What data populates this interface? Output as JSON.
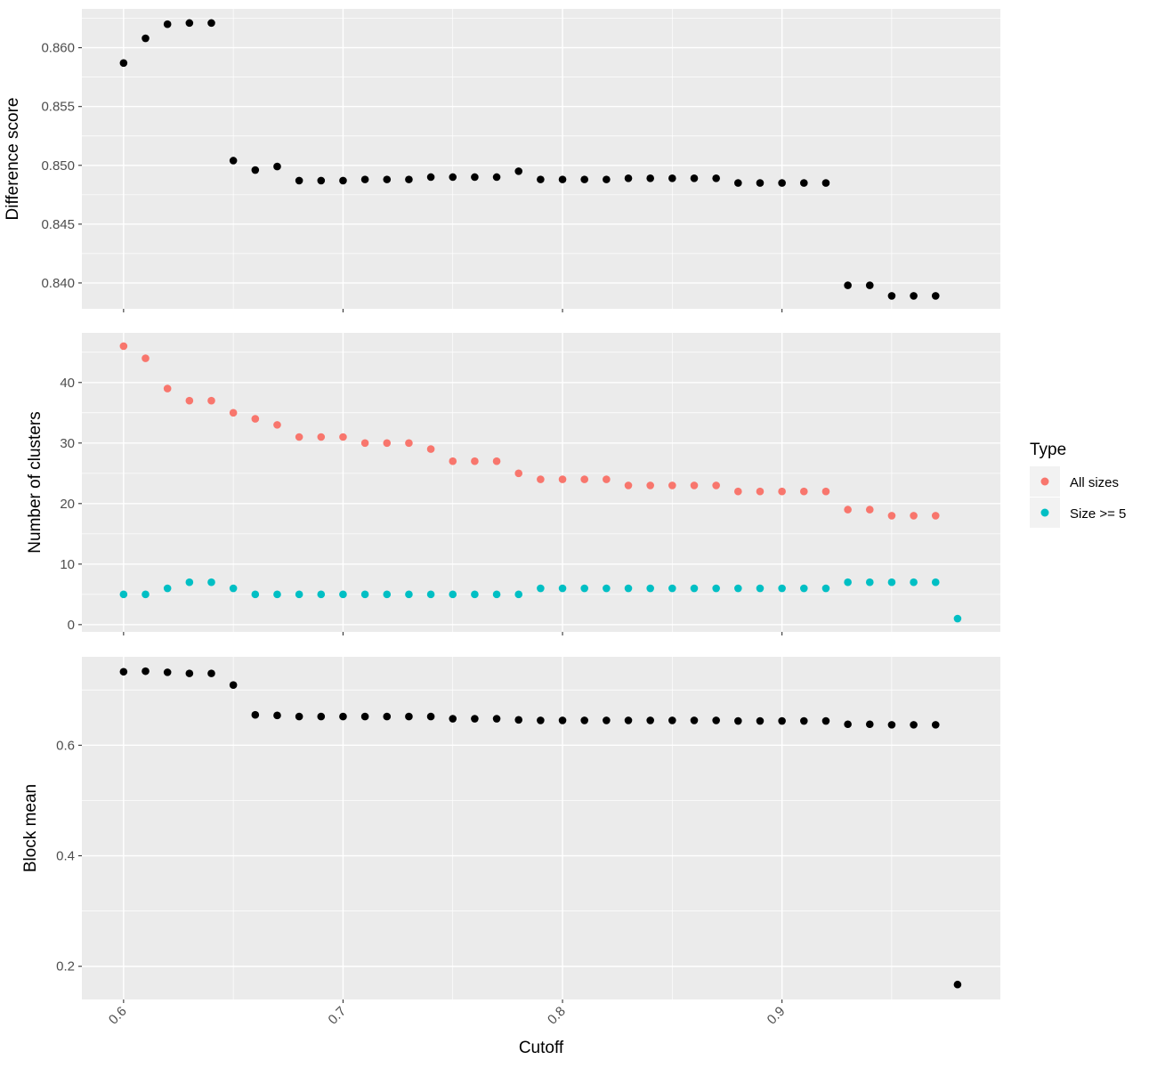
{
  "chart_data": {
    "type": "scatter",
    "xlabel": "Cutoff",
    "x_ticks": [
      0.6,
      0.7,
      0.8,
      0.9
    ],
    "x_tick_labels": [
      "0.6",
      "0.7",
      "0.8",
      "0.9"
    ],
    "xlim": [
      0.581,
      0.9995
    ],
    "legend": {
      "title": "Type",
      "placement": "right",
      "entries": [
        {
          "label": "All sizes",
          "color": "#F8766D"
        },
        {
          "label": "Size >= 5",
          "color": "#00BFC4"
        }
      ]
    },
    "panels": [
      {
        "id": "difference",
        "ylabel": "Difference score",
        "ylim": [
          0.8378,
          0.8633
        ],
        "y_ticks": [
          0.84,
          0.845,
          0.85,
          0.855,
          0.86
        ],
        "y_tick_labels": [
          "0.840",
          "0.845",
          "0.850",
          "0.855",
          "0.860"
        ],
        "series": [
          {
            "color": "#000000",
            "x": [
              0.6,
              0.61,
              0.62,
              0.63,
              0.64,
              0.65,
              0.66,
              0.67,
              0.68,
              0.69,
              0.7,
              0.71,
              0.72,
              0.73,
              0.74,
              0.75,
              0.76,
              0.77,
              0.78,
              0.79,
              0.8,
              0.81,
              0.82,
              0.83,
              0.84,
              0.85,
              0.86,
              0.87,
              0.88,
              0.89,
              0.9,
              0.91,
              0.92,
              0.93,
              0.94,
              0.95,
              0.96,
              0.97
            ],
            "y": [
              0.8587,
              0.8608,
              0.862,
              0.8621,
              0.8621,
              0.8504,
              0.8496,
              0.8499,
              0.8487,
              0.8487,
              0.8487,
              0.8488,
              0.8488,
              0.8488,
              0.849,
              0.849,
              0.849,
              0.849,
              0.8495,
              0.8488,
              0.8488,
              0.8488,
              0.8488,
              0.8489,
              0.8489,
              0.8489,
              0.8489,
              0.8489,
              0.8485,
              0.8485,
              0.8485,
              0.8485,
              0.8485,
              0.8398,
              0.8398,
              0.8389,
              0.8389,
              0.8389
            ]
          }
        ]
      },
      {
        "id": "clusters",
        "ylabel": "Number of clusters",
        "ylim": [
          -1.2,
          48.2
        ],
        "y_ticks": [
          0,
          10,
          20,
          30,
          40
        ],
        "y_tick_labels": [
          "0",
          "10",
          "20",
          "30",
          "40"
        ],
        "series": [
          {
            "name": "All sizes",
            "color": "#F8766D",
            "x": [
              0.6,
              0.61,
              0.62,
              0.63,
              0.64,
              0.65,
              0.66,
              0.67,
              0.68,
              0.69,
              0.7,
              0.71,
              0.72,
              0.73,
              0.74,
              0.75,
              0.76,
              0.77,
              0.78,
              0.79,
              0.8,
              0.81,
              0.82,
              0.83,
              0.84,
              0.85,
              0.86,
              0.87,
              0.88,
              0.89,
              0.9,
              0.91,
              0.92,
              0.93,
              0.94,
              0.95,
              0.96,
              0.97
            ],
            "y": [
              46,
              44,
              39,
              37,
              37,
              35,
              34,
              33,
              31,
              31,
              31,
              30,
              30,
              30,
              29,
              27,
              27,
              27,
              25,
              24,
              24,
              24,
              24,
              23,
              23,
              23,
              23,
              23,
              22,
              22,
              22,
              22,
              22,
              19,
              19,
              18,
              18,
              18
            ]
          },
          {
            "name": "Size >= 5",
            "color": "#00BFC4",
            "x": [
              0.6,
              0.61,
              0.62,
              0.63,
              0.64,
              0.65,
              0.66,
              0.67,
              0.68,
              0.69,
              0.7,
              0.71,
              0.72,
              0.73,
              0.74,
              0.75,
              0.76,
              0.77,
              0.78,
              0.79,
              0.8,
              0.81,
              0.82,
              0.83,
              0.84,
              0.85,
              0.86,
              0.87,
              0.88,
              0.89,
              0.9,
              0.91,
              0.92,
              0.93,
              0.94,
              0.95,
              0.96,
              0.97,
              0.98
            ],
            "y": [
              5,
              5,
              6,
              7,
              7,
              6,
              5,
              5,
              5,
              5,
              5,
              5,
              5,
              5,
              5,
              5,
              5,
              5,
              5,
              6,
              6,
              6,
              6,
              6,
              6,
              6,
              6,
              6,
              6,
              6,
              6,
              6,
              6,
              7,
              7,
              7,
              7,
              7,
              1
            ]
          }
        ]
      },
      {
        "id": "blockmean",
        "ylabel": "Block mean",
        "ylim": [
          0.14,
          0.76
        ],
        "y_ticks": [
          0.2,
          0.4,
          0.6
        ],
        "y_tick_labels": [
          "0.2",
          "0.4",
          "0.6"
        ],
        "series": [
          {
            "color": "#000000",
            "x": [
              0.6,
              0.61,
              0.62,
              0.63,
              0.64,
              0.65,
              0.66,
              0.67,
              0.68,
              0.69,
              0.7,
              0.71,
              0.72,
              0.73,
              0.74,
              0.75,
              0.76,
              0.77,
              0.78,
              0.79,
              0.8,
              0.81,
              0.82,
              0.83,
              0.84,
              0.85,
              0.86,
              0.87,
              0.88,
              0.89,
              0.9,
              0.91,
              0.92,
              0.93,
              0.94,
              0.95,
              0.96,
              0.97,
              0.98
            ],
            "y": [
              0.733,
              0.734,
              0.732,
              0.73,
              0.73,
              0.709,
              0.655,
              0.654,
              0.652,
              0.652,
              0.652,
              0.652,
              0.652,
              0.652,
              0.652,
              0.648,
              0.648,
              0.648,
              0.646,
              0.645,
              0.645,
              0.645,
              0.645,
              0.645,
              0.645,
              0.645,
              0.645,
              0.645,
              0.644,
              0.644,
              0.644,
              0.644,
              0.644,
              0.638,
              0.638,
              0.637,
              0.637,
              0.637,
              0.167
            ]
          }
        ]
      }
    ]
  }
}
